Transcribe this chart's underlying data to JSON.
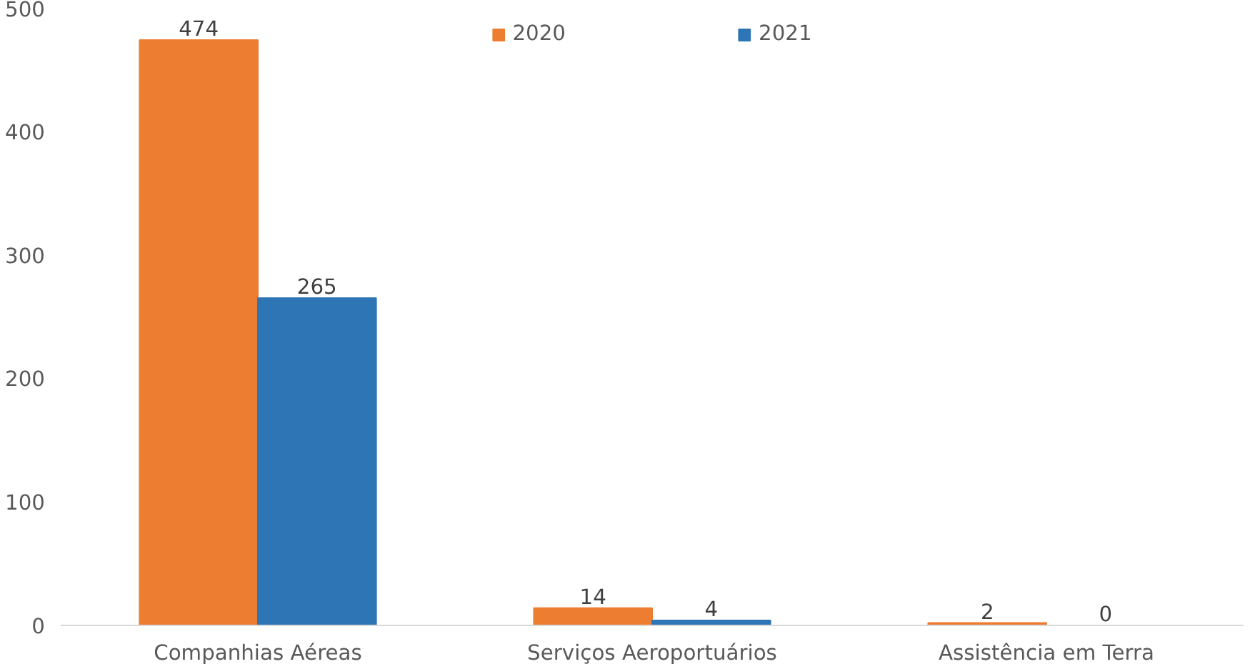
{
  "chart_data": {
    "type": "bar",
    "categories": [
      "Companhias Aéreas",
      "Serviços Aeroportuários",
      "Assistência em Terra"
    ],
    "series": [
      {
        "name": "2020",
        "color": "#ed7d31",
        "values": [
          474,
          14,
          2
        ]
      },
      {
        "name": "2021",
        "color": "#2e75b6",
        "values": [
          265,
          4,
          0
        ]
      }
    ],
    "ylim": [
      0,
      500
    ],
    "yticks": [
      0,
      100,
      200,
      300,
      400,
      500
    ],
    "grid": false,
    "legend": "top",
    "data_labels": true
  }
}
